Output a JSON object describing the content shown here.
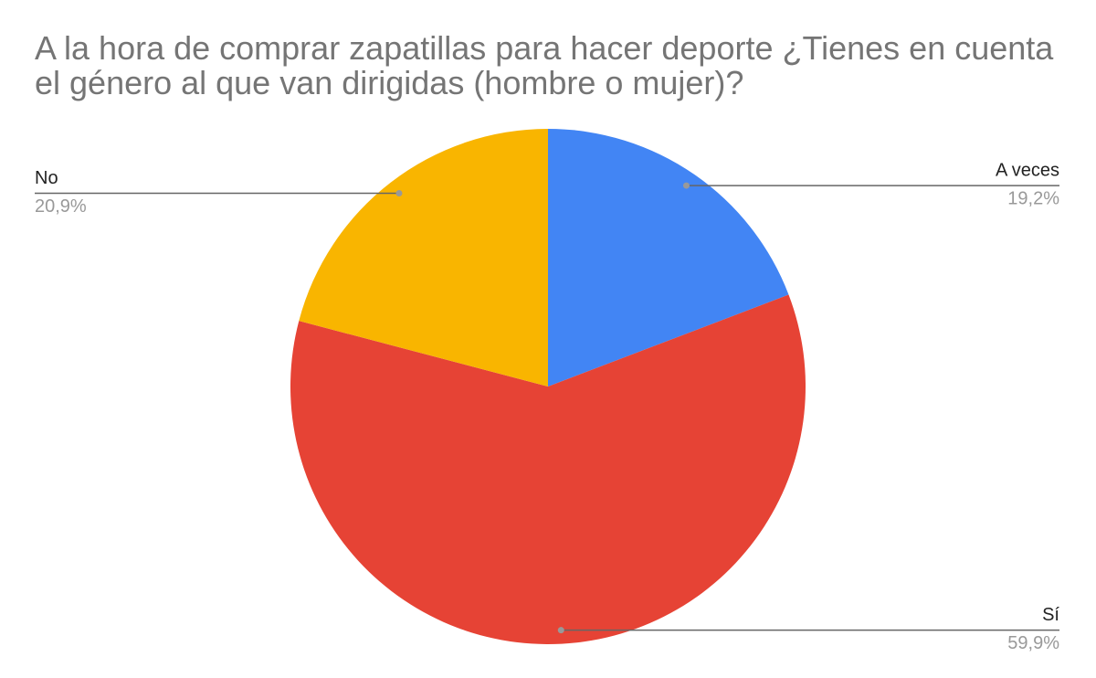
{
  "chart_data": {
    "type": "pie",
    "title": "A la hora de comprar zapatillas para hacer deporte ¿Tienes en cuenta el género al que van dirigidas (hombre o mujer)?",
    "categories": [
      "A veces",
      "Sí",
      "No"
    ],
    "values": [
      19.2,
      59.9,
      20.9
    ],
    "value_labels": [
      "19,2%",
      "59,9%",
      "20,9%"
    ],
    "colors": [
      "#4285f4",
      "#e64335",
      "#f9b500"
    ]
  }
}
